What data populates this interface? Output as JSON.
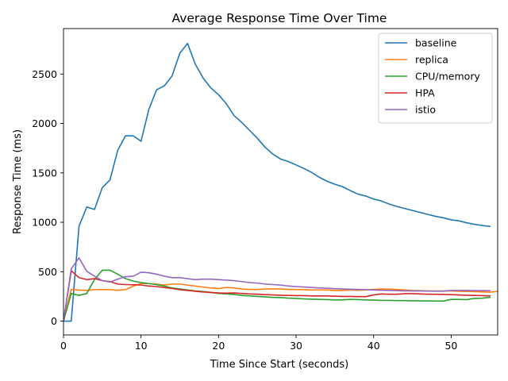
{
  "chart_data": {
    "type": "line",
    "title": "Average Response Time Over Time",
    "xlabel": "Time Since Start (seconds)",
    "ylabel": "Response Time (ms)",
    "xlim": [
      0,
      56
    ],
    "ylim": [
      -140,
      2960
    ],
    "xticks": [
      0,
      10,
      20,
      30,
      40,
      50
    ],
    "yticks": [
      0,
      500,
      1000,
      1500,
      2000,
      2500
    ],
    "grid": false,
    "legend_position": "top-right",
    "series": [
      {
        "name": "baseline",
        "color": "#1f77b4",
        "x": [
          0,
          1,
          2,
          3,
          4,
          5,
          6,
          7,
          8,
          9,
          10,
          11,
          12,
          13,
          14,
          15,
          16,
          17,
          18,
          19,
          20,
          21,
          22,
          23,
          24,
          25,
          26,
          27,
          28,
          29,
          30,
          31,
          32,
          33,
          34,
          35,
          36,
          37,
          38,
          39,
          40,
          41,
          42,
          43,
          44,
          45,
          46,
          47,
          48,
          49,
          50,
          51,
          52,
          53,
          54,
          55
        ],
        "y": [
          0,
          0,
          960,
          1155,
          1130,
          1350,
          1430,
          1730,
          1875,
          1875,
          1820,
          2140,
          2340,
          2380,
          2480,
          2710,
          2810,
          2600,
          2460,
          2360,
          2290,
          2200,
          2080,
          2010,
          1930,
          1850,
          1760,
          1690,
          1640,
          1615,
          1580,
          1545,
          1505,
          1455,
          1415,
          1385,
          1360,
          1320,
          1285,
          1265,
          1235,
          1215,
          1185,
          1160,
          1140,
          1120,
          1100,
          1080,
          1060,
          1045,
          1025,
          1015,
          995,
          980,
          968,
          958
        ]
      },
      {
        "name": "replica",
        "color": "#ff7f0e",
        "x": [
          0,
          1,
          2,
          3,
          4,
          5,
          6,
          7,
          8,
          9,
          10,
          11,
          12,
          13,
          14,
          15,
          16,
          17,
          18,
          19,
          20,
          21,
          22,
          23,
          24,
          25,
          26,
          27,
          28,
          29,
          30,
          31,
          32,
          33,
          34,
          35,
          36,
          37,
          38,
          39,
          40,
          41,
          42,
          43,
          44,
          45,
          46,
          47,
          48,
          49,
          50,
          51,
          52,
          53,
          54,
          55,
          56
        ],
        "y": [
          0,
          320,
          315,
          310,
          318,
          320,
          318,
          312,
          318,
          355,
          380,
          380,
          375,
          365,
          375,
          375,
          365,
          355,
          345,
          335,
          330,
          340,
          335,
          325,
          320,
          320,
          325,
          325,
          325,
          320,
          320,
          318,
          315,
          315,
          315,
          310,
          310,
          315,
          312,
          315,
          320,
          325,
          323,
          320,
          315,
          310,
          308,
          305,
          305,
          305,
          305,
          302,
          300,
          298,
          295,
          293,
          300
        ]
      },
      {
        "name": "CPU/memory",
        "color": "#2ca02c",
        "x": [
          0,
          1,
          2,
          3,
          4,
          5,
          6,
          7,
          8,
          9,
          10,
          11,
          12,
          13,
          14,
          15,
          16,
          17,
          18,
          19,
          20,
          21,
          22,
          23,
          24,
          25,
          26,
          27,
          28,
          29,
          30,
          31,
          32,
          33,
          34,
          35,
          36,
          37,
          38,
          39,
          40,
          41,
          42,
          43,
          44,
          45,
          46,
          47,
          48,
          49,
          50,
          51,
          52,
          53,
          54,
          55
        ],
        "y": [
          0,
          280,
          260,
          280,
          420,
          515,
          515,
          475,
          430,
          405,
          390,
          380,
          370,
          355,
          335,
          325,
          315,
          305,
          300,
          290,
          280,
          275,
          270,
          260,
          255,
          250,
          245,
          240,
          238,
          233,
          230,
          225,
          222,
          220,
          218,
          215,
          215,
          220,
          218,
          215,
          213,
          210,
          210,
          208,
          208,
          206,
          205,
          205,
          203,
          203,
          220,
          220,
          218,
          230,
          232,
          240
        ]
      },
      {
        "name": "HPA",
        "color": "#d62728",
        "x": [
          0,
          1,
          2,
          3,
          4,
          5,
          6,
          7,
          8,
          9,
          10,
          11,
          12,
          13,
          14,
          15,
          16,
          17,
          18,
          19,
          20,
          21,
          22,
          23,
          24,
          25,
          26,
          27,
          28,
          29,
          30,
          31,
          32,
          33,
          34,
          35,
          36,
          37,
          38,
          39,
          40,
          41,
          42,
          43,
          44,
          45,
          46,
          47,
          48,
          49,
          50,
          51,
          52,
          53,
          54,
          55
        ],
        "y": [
          0,
          510,
          440,
          420,
          430,
          410,
          400,
          375,
          370,
          368,
          365,
          355,
          350,
          340,
          330,
          318,
          310,
          302,
          295,
          290,
          285,
          283,
          285,
          280,
          275,
          272,
          268,
          265,
          262,
          260,
          258,
          258,
          255,
          255,
          255,
          252,
          250,
          250,
          248,
          248,
          265,
          275,
          272,
          272,
          278,
          278,
          275,
          272,
          272,
          270,
          268,
          265,
          262,
          260,
          258,
          255
        ]
      },
      {
        "name": "istio",
        "color": "#9467bd",
        "x": [
          0,
          1,
          2,
          3,
          4,
          5,
          6,
          7,
          8,
          9,
          10,
          11,
          12,
          13,
          14,
          15,
          16,
          17,
          18,
          19,
          20,
          21,
          22,
          23,
          24,
          25,
          26,
          27,
          28,
          29,
          30,
          31,
          32,
          33,
          34,
          35,
          36,
          37,
          38,
          39,
          40,
          41,
          42,
          43,
          44,
          45,
          46,
          47,
          48,
          49,
          50,
          51,
          52,
          53,
          54,
          55
        ],
        "y": [
          0,
          530,
          640,
          505,
          455,
          410,
          395,
          425,
          450,
          455,
          495,
          490,
          475,
          455,
          440,
          440,
          430,
          420,
          425,
          425,
          420,
          415,
          410,
          400,
          390,
          385,
          375,
          370,
          365,
          355,
          350,
          345,
          340,
          335,
          332,
          328,
          325,
          322,
          320,
          318,
          315,
          312,
          310,
          308,
          306,
          305,
          305,
          304,
          303,
          303,
          310,
          310,
          310,
          309,
          308,
          308
        ]
      }
    ]
  }
}
